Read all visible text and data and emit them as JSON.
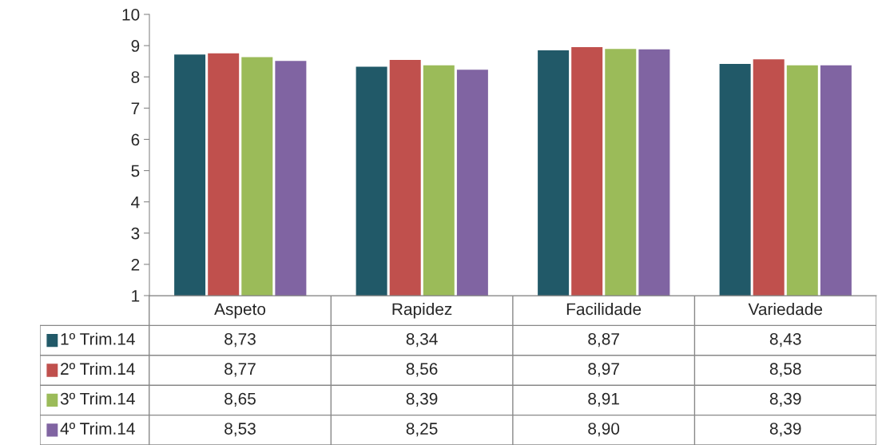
{
  "chart_data": {
    "type": "bar",
    "categories": [
      "Aspeto",
      "Rapidez",
      "Facilidade",
      "Variedade"
    ],
    "series": [
      {
        "name": "1º Trim.14",
        "color": "#215968",
        "values": [
          8.73,
          8.34,
          8.87,
          8.43
        ],
        "value_labels": [
          "8,73",
          "8,34",
          "8,87",
          "8,43"
        ]
      },
      {
        "name": "2º Trim.14",
        "color": "#c0504d",
        "values": [
          8.77,
          8.56,
          8.97,
          8.58
        ],
        "value_labels": [
          "8,77",
          "8,56",
          "8,97",
          "8,58"
        ]
      },
      {
        "name": "3º Trim.14",
        "color": "#9bbb59",
        "values": [
          8.65,
          8.39,
          8.91,
          8.39
        ],
        "value_labels": [
          "8,65",
          "8,39",
          "8,91",
          "8,39"
        ]
      },
      {
        "name": "4º Trim.14",
        "color": "#8064a2",
        "values": [
          8.53,
          8.25,
          8.9,
          8.39
        ],
        "value_labels": [
          "8,53",
          "8,25",
          "8,90",
          "8,39"
        ]
      }
    ],
    "ylim": [
      1,
      10
    ],
    "yticks": [
      1,
      2,
      3,
      4,
      5,
      6,
      7,
      8,
      9,
      10
    ],
    "grid": false,
    "legend": "bottom"
  }
}
